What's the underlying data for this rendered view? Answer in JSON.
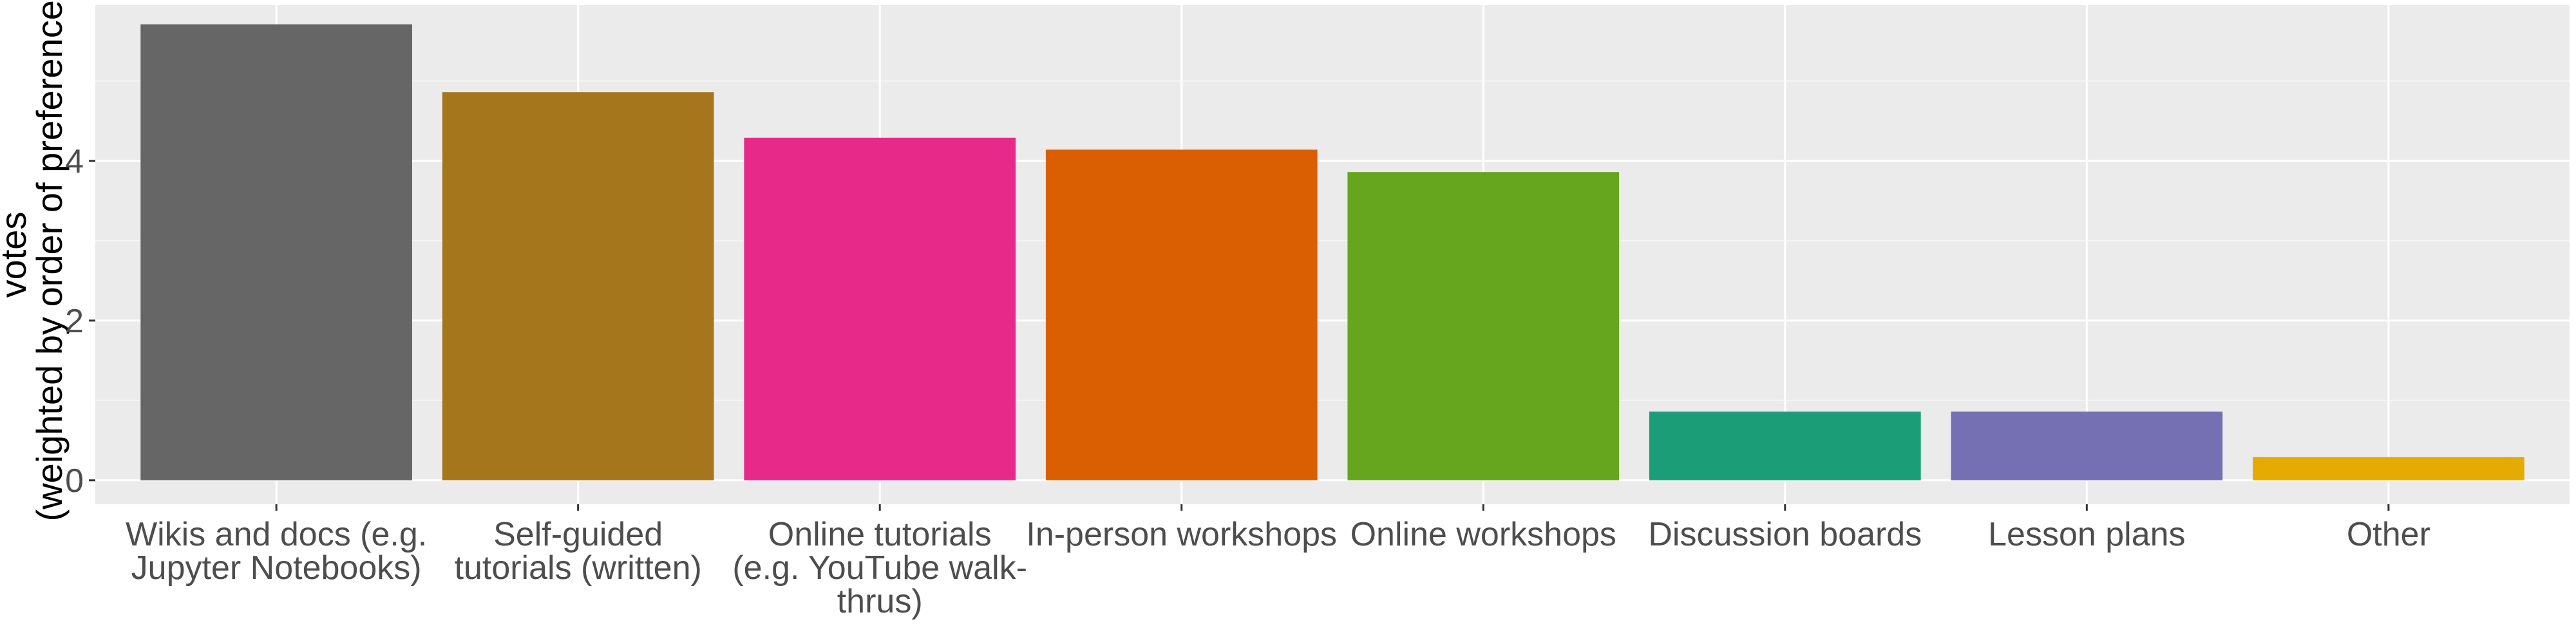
{
  "chart_data": {
    "type": "bar",
    "categories": [
      "Wikis and docs (e.g. Jupyter Notebooks)",
      "Self-guided tutorials (written)",
      "Online tutorials (e.g. YouTube walk-thrus)",
      "In-person workshops",
      "Online workshops",
      "Discussion boards",
      "Lesson plans",
      "Other"
    ],
    "category_lines": [
      [
        "Wikis and docs (e.g.",
        "Jupyter Notebooks)"
      ],
      [
        "Self-guided",
        "tutorials (written)"
      ],
      [
        "Online tutorials",
        "(e.g. YouTube walk-",
        "thrus)"
      ],
      [
        "In-person workshops"
      ],
      [
        "Online workshops"
      ],
      [
        "Discussion boards"
      ],
      [
        "Lesson plans"
      ],
      [
        "Other"
      ]
    ],
    "values": [
      5.71,
      4.86,
      4.29,
      4.14,
      3.86,
      0.86,
      0.86,
      0.29
    ],
    "colors": [
      "#666666",
      "#A6761D",
      "#E7298A",
      "#D95F02",
      "#66A61E",
      "#1B9E77",
      "#7570B3",
      "#E6AB02"
    ],
    "ylabel_lines": [
      "votes",
      "(weighted by order of preference)"
    ],
    "xlabel": "",
    "title": "",
    "ylim": [
      -0.3,
      5.95
    ],
    "yticks": [
      0,
      2,
      4
    ],
    "grid": true,
    "legend": "none"
  }
}
